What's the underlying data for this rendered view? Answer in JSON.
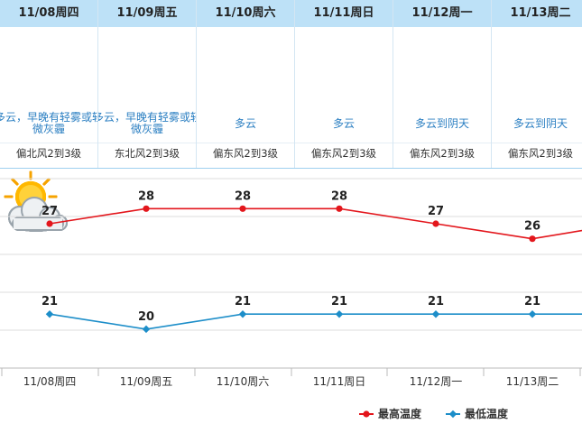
{
  "days": [
    {
      "date": "11/08周四",
      "desc": "多云，早晚有轻雾或轻微灰霾",
      "wind": "偏北风2到3级",
      "icon": "sun-cloud-icon"
    },
    {
      "date": "11/09周五",
      "desc": "多云，早晚有轻雾或轻微灰霾",
      "wind": "东北风2到3级",
      "icon": "sun-cloud-icon"
    },
    {
      "date": "11/10周六",
      "desc": "多云",
      "wind": "偏东风2到3级",
      "icon": "sun-cloud-icon"
    },
    {
      "date": "11/11周日",
      "desc": "多云",
      "wind": "偏东风2到3级",
      "icon": "sun-cloud-icon"
    },
    {
      "date": "11/12周一",
      "desc": "多云到阴天",
      "wind": "偏东风2到3级",
      "icon": "sun-cloud-icon"
    },
    {
      "date": "11/13周二",
      "desc": "多云到阴天",
      "wind": "偏东风2到3级",
      "icon": "sun-cloud-icon"
    }
  ],
  "chart_data": {
    "type": "line",
    "categories": [
      "11/08周四",
      "11/09周五",
      "11/10周六",
      "11/11周日",
      "11/12周一",
      "11/13周二"
    ],
    "series": [
      {
        "name": "最高温度",
        "values": [
          27,
          28,
          28,
          28,
          27,
          26
        ],
        "color": "#e3161c"
      },
      {
        "name": "最低温度",
        "values": [
          21,
          20,
          21,
          21,
          21,
          21
        ],
        "color": "#1d8ec9"
      }
    ],
    "grid": true,
    "legend": "bottom-right"
  }
}
